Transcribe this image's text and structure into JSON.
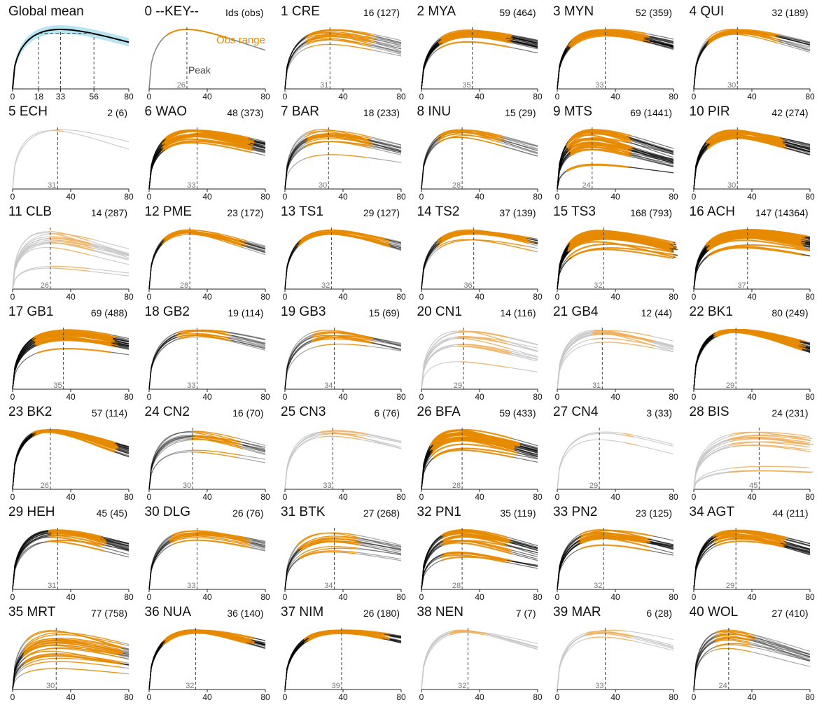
{
  "chart_data": {
    "type": "line",
    "x_range": [
      0,
      80
    ],
    "x_ticks": [
      0,
      40,
      80
    ],
    "grid": false,
    "colors": {
      "observed": "#e68a00",
      "extrapolated": "#000000",
      "observed_light": "#f0b060",
      "extrapolated_light": "#c8c8c8",
      "mean_band": "#7fd0ea",
      "guide": "#444444"
    },
    "global_mean": {
      "title": "Global mean",
      "x_ticks": [
        0,
        18,
        33,
        56,
        80
      ],
      "peak": 33,
      "obs_range": [
        18,
        56
      ]
    },
    "key_panel": {
      "title": "0 --KEY--",
      "count_label": "Ids (obs)",
      "obs_label": "Obs range",
      "peak_label": "Peak",
      "peak": 26,
      "obs_range": [
        12,
        55
      ]
    },
    "panels": [
      {
        "title": "1 CRE",
        "count": "16 (127)",
        "peak": 31,
        "obs_range": [
          15,
          60
        ],
        "n_curves": 16,
        "spread": 0.12,
        "density": "mid"
      },
      {
        "title": "2 MYA",
        "count": "59 (464)",
        "peak": 35,
        "obs_range": [
          13,
          60
        ],
        "n_curves": 24,
        "spread": 0.12,
        "density": "high"
      },
      {
        "title": "3 MYN",
        "count": "52 (359)",
        "peak": 33,
        "obs_range": [
          8,
          62
        ],
        "n_curves": 22,
        "spread": 0.08,
        "density": "high"
      },
      {
        "title": "4 QUI",
        "count": "32 (189)",
        "peak": 30,
        "obs_range": [
          10,
          58
        ],
        "n_curves": 18,
        "spread": 0.06,
        "density": "mid"
      },
      {
        "title": "5 ECH",
        "count": "2 (6)",
        "peak": 31,
        "obs_range": [
          30,
          34
        ],
        "n_curves": 2,
        "spread": 0.02,
        "density": "low"
      },
      {
        "title": "6 WAO",
        "count": "48 (373)",
        "peak": 33,
        "obs_range": [
          10,
          70
        ],
        "n_curves": 24,
        "spread": 0.12,
        "density": "high"
      },
      {
        "title": "7 BAR",
        "count": "18 (233)",
        "peak": 30,
        "obs_range": [
          15,
          58
        ],
        "n_curves": 18,
        "spread": 0.22,
        "density": "mid"
      },
      {
        "title": "8 INU",
        "count": "15 (29)",
        "peak": 28,
        "obs_range": [
          12,
          55
        ],
        "n_curves": 12,
        "spread": 0.06,
        "density": "mid"
      },
      {
        "title": "9 MTS",
        "count": "69 (1441)",
        "peak": 24,
        "obs_range": [
          8,
          50
        ],
        "n_curves": 28,
        "spread": 0.3,
        "density": "high"
      },
      {
        "title": "10 PIR",
        "count": "42 (274)",
        "peak": 30,
        "obs_range": [
          10,
          62
        ],
        "n_curves": 22,
        "spread": 0.14,
        "density": "high"
      },
      {
        "title": "11 CLB",
        "count": "14 (287)",
        "peak": 26,
        "obs_range": [
          26,
          55
        ],
        "n_curves": 14,
        "spread": 0.32,
        "density": "low"
      },
      {
        "title": "12 PME",
        "count": "23 (172)",
        "peak": 28,
        "obs_range": [
          10,
          65
        ],
        "n_curves": 16,
        "spread": 0.06,
        "density": "mid"
      },
      {
        "title": "13 TS1",
        "count": "29 (127)",
        "peak": 32,
        "obs_range": [
          10,
          70
        ],
        "n_curves": 16,
        "spread": 0.08,
        "density": "mid"
      },
      {
        "title": "14 TS2",
        "count": "37 (139)",
        "peak": 36,
        "obs_range": [
          12,
          75
        ],
        "n_curves": 18,
        "spread": 0.08,
        "density": "mid"
      },
      {
        "title": "15 TS3",
        "count": "168 (793)",
        "peak": 32,
        "obs_range": [
          8,
          80
        ],
        "n_curves": 32,
        "spread": 0.16,
        "density": "high"
      },
      {
        "title": "16 ACH",
        "count": "147 (14364)",
        "peak": 37,
        "obs_range": [
          10,
          76
        ],
        "n_curves": 32,
        "spread": 0.14,
        "density": "high"
      },
      {
        "title": "17 GB1",
        "count": "69 (488)",
        "peak": 35,
        "obs_range": [
          15,
          70
        ],
        "n_curves": 26,
        "spread": 0.16,
        "density": "high"
      },
      {
        "title": "18 GB2",
        "count": "19 (114)",
        "peak": 33,
        "obs_range": [
          20,
          55
        ],
        "n_curves": 14,
        "spread": 0.12,
        "density": "mid"
      },
      {
        "title": "19 GB3",
        "count": "15 (69)",
        "peak": 34,
        "obs_range": [
          20,
          60
        ],
        "n_curves": 12,
        "spread": 0.16,
        "density": "mid"
      },
      {
        "title": "20 CN1",
        "count": "14 (116)",
        "peak": 29,
        "obs_range": [
          25,
          60
        ],
        "n_curves": 12,
        "spread": 0.28,
        "density": "low"
      },
      {
        "title": "21 GB4",
        "count": "12 (44)",
        "peak": 31,
        "obs_range": [
          25,
          65
        ],
        "n_curves": 12,
        "spread": 0.1,
        "density": "low"
      },
      {
        "title": "22 BK1",
        "count": "80 (249)",
        "peak": 29,
        "obs_range": [
          15,
          75
        ],
        "n_curves": 24,
        "spread": 0.02,
        "density": "high"
      },
      {
        "title": "23 BK2",
        "count": "57 (114)",
        "peak": 26,
        "obs_range": [
          15,
          70
        ],
        "n_curves": 20,
        "spread": 0.02,
        "density": "high"
      },
      {
        "title": "24 CN2",
        "count": "16 (70)",
        "peak": 30,
        "obs_range": [
          30,
          62
        ],
        "n_curves": 14,
        "spread": 0.18,
        "density": "mid"
      },
      {
        "title": "25 CN3",
        "count": "6 (76)",
        "peak": 33,
        "obs_range": [
          25,
          55
        ],
        "n_curves": 6,
        "spread": 0.08,
        "density": "low"
      },
      {
        "title": "26 BFA",
        "count": "59 (433)",
        "peak": 28,
        "obs_range": [
          8,
          65
        ],
        "n_curves": 24,
        "spread": 0.18,
        "density": "high"
      },
      {
        "title": "27 CN4",
        "count": "3 (33)",
        "peak": 29,
        "obs_range": [
          45,
          55
        ],
        "n_curves": 3,
        "spread": 0.2,
        "density": "low"
      },
      {
        "title": "28 BIS",
        "count": "24 (231)",
        "peak": 45,
        "obs_range": [
          25,
          80
        ],
        "n_curves": 16,
        "spread": 0.32,
        "density": "low"
      },
      {
        "title": "29 HEH",
        "count": "45 (45)",
        "peak": 31,
        "obs_range": [
          25,
          62
        ],
        "n_curves": 18,
        "spread": 0.1,
        "density": "high"
      },
      {
        "title": "30 DLG",
        "count": "26 (76)",
        "peak": 33,
        "obs_range": [
          15,
          68
        ],
        "n_curves": 16,
        "spread": 0.1,
        "density": "mid"
      },
      {
        "title": "31 BTK",
        "count": "27 (268)",
        "peak": 34,
        "obs_range": [
          10,
          50
        ],
        "n_curves": 16,
        "spread": 0.2,
        "density": "mid"
      },
      {
        "title": "32 PN1",
        "count": "35 (119)",
        "peak": 28,
        "obs_range": [
          15,
          60
        ],
        "n_curves": 20,
        "spread": 0.24,
        "density": "high"
      },
      {
        "title": "33 PN2",
        "count": "23 (125)",
        "peak": 32,
        "obs_range": [
          15,
          62
        ],
        "n_curves": 16,
        "spread": 0.16,
        "density": "high"
      },
      {
        "title": "34 AGT",
        "count": "44 (211)",
        "peak": 29,
        "obs_range": [
          15,
          62
        ],
        "n_curves": 20,
        "spread": 0.12,
        "density": "high"
      },
      {
        "title": "35 MRT",
        "count": "77 (758)",
        "peak": 30,
        "obs_range": [
          8,
          75
        ],
        "n_curves": 28,
        "spread": 0.3,
        "density": "mid"
      },
      {
        "title": "36 NUA",
        "count": "36 (140)",
        "peak": 32,
        "obs_range": [
          10,
          70
        ],
        "n_curves": 18,
        "spread": 0.04,
        "density": "high"
      },
      {
        "title": "37 NIM",
        "count": "26 (180)",
        "peak": 39,
        "obs_range": [
          15,
          70
        ],
        "n_curves": 16,
        "spread": 0.04,
        "density": "high"
      },
      {
        "title": "38 NEN",
        "count": "7 (7)",
        "peak": 32,
        "obs_range": [
          20,
          45
        ],
        "n_curves": 6,
        "spread": 0.04,
        "density": "low"
      },
      {
        "title": "39 MAR",
        "count": "6 (28)",
        "peak": 33,
        "obs_range": [
          20,
          50
        ],
        "n_curves": 6,
        "spread": 0.12,
        "density": "low"
      },
      {
        "title": "40 WOL",
        "count": "27 (410)",
        "peak": 24,
        "obs_range": [
          15,
          40
        ],
        "n_curves": 16,
        "spread": 0.18,
        "density": "mid"
      }
    ]
  }
}
